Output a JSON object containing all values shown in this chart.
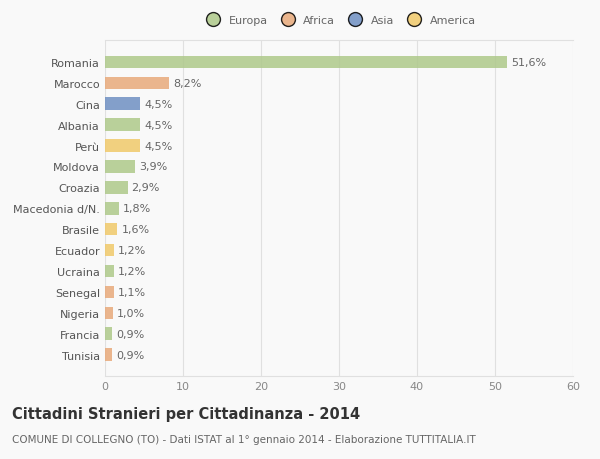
{
  "categories": [
    "Romania",
    "Marocco",
    "Cina",
    "Albania",
    "Perù",
    "Moldova",
    "Croazia",
    "Macedonia d/N.",
    "Brasile",
    "Ecuador",
    "Ucraina",
    "Senegal",
    "Nigeria",
    "Francia",
    "Tunisia"
  ],
  "values": [
    51.6,
    8.2,
    4.5,
    4.5,
    4.5,
    3.9,
    2.9,
    1.8,
    1.6,
    1.2,
    1.2,
    1.1,
    1.0,
    0.9,
    0.9
  ],
  "labels": [
    "51,6%",
    "8,2%",
    "4,5%",
    "4,5%",
    "4,5%",
    "3,9%",
    "2,9%",
    "1,8%",
    "1,6%",
    "1,2%",
    "1,2%",
    "1,1%",
    "1,0%",
    "0,9%",
    "0,9%"
  ],
  "colors": [
    "#aec98a",
    "#e8a97a",
    "#6e8fc2",
    "#aec98a",
    "#f0c96a",
    "#aec98a",
    "#aec98a",
    "#aec98a",
    "#f0c96a",
    "#f0c96a",
    "#aec98a",
    "#e8a97a",
    "#e8a97a",
    "#aec98a",
    "#e8a97a"
  ],
  "legend_labels": [
    "Europa",
    "Africa",
    "Asia",
    "America"
  ],
  "legend_colors": [
    "#aec98a",
    "#e8a97a",
    "#6e8fc2",
    "#f0c96a"
  ],
  "title": "Cittadini Stranieri per Cittadinanza - 2014",
  "subtitle": "COMUNE DI COLLEGNO (TO) - Dati ISTAT al 1° gennaio 2014 - Elaborazione TUTTITALIA.IT",
  "xlim": [
    0,
    60
  ],
  "xticks": [
    0,
    10,
    20,
    30,
    40,
    50,
    60
  ],
  "background_color": "#f9f9f9",
  "grid_color": "#e0e0e0",
  "bar_height": 0.6,
  "label_fontsize": 8.0,
  "tick_fontsize": 8.0,
  "title_fontsize": 10.5,
  "subtitle_fontsize": 7.5
}
